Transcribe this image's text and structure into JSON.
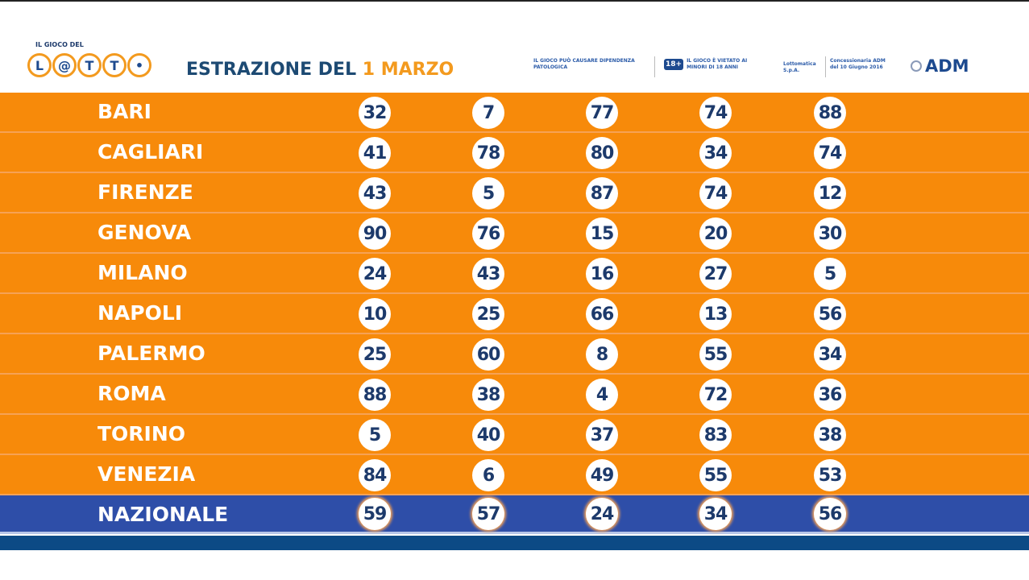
{
  "header": {
    "logo_top": "IL GIOCO DEL",
    "logo_letters": [
      "L",
      "@",
      "T",
      "T",
      "•"
    ],
    "title_prefix": "ESTRAZIONE DEL",
    "title_date": "1 MARZO",
    "disclaimer1": "IL GIOCO PUÒ CAUSARE DIPENDENZA PATOLOGICA",
    "badge": "18+",
    "disclaimer2": "IL GIOCO È VIETATO AI MINORI DI 18 ANNI",
    "operator": "Lottomatica S.p.A.",
    "concession": "Concessionaria ADM del 10 Giugno 2016",
    "adm": "ADM"
  },
  "colors": {
    "orange": "#f78a0a",
    "blue": "#2e4ea8",
    "navy": "#1d3a6b"
  },
  "rows": [
    {
      "wheel": "BARI",
      "numbers": [
        "32",
        "7",
        "77",
        "74",
        "88"
      ]
    },
    {
      "wheel": "CAGLIARI",
      "numbers": [
        "41",
        "78",
        "80",
        "34",
        "74"
      ]
    },
    {
      "wheel": "FIRENZE",
      "numbers": [
        "43",
        "5",
        "87",
        "74",
        "12"
      ]
    },
    {
      "wheel": "GENOVA",
      "numbers": [
        "90",
        "76",
        "15",
        "20",
        "30"
      ]
    },
    {
      "wheel": "MILANO",
      "numbers": [
        "24",
        "43",
        "16",
        "27",
        "5"
      ]
    },
    {
      "wheel": "NAPOLI",
      "numbers": [
        "10",
        "25",
        "66",
        "13",
        "56"
      ]
    },
    {
      "wheel": "PALERMO",
      "numbers": [
        "25",
        "60",
        "8",
        "55",
        "34"
      ]
    },
    {
      "wheel": "ROMA",
      "numbers": [
        "88",
        "38",
        "4",
        "72",
        "36"
      ]
    },
    {
      "wheel": "TORINO",
      "numbers": [
        "5",
        "40",
        "37",
        "83",
        "38"
      ]
    },
    {
      "wheel": "VENEZIA",
      "numbers": [
        "84",
        "6",
        "49",
        "55",
        "53"
      ]
    },
    {
      "wheel": "NAZIONALE",
      "numbers": [
        "59",
        "57",
        "24",
        "34",
        "56"
      ]
    }
  ]
}
